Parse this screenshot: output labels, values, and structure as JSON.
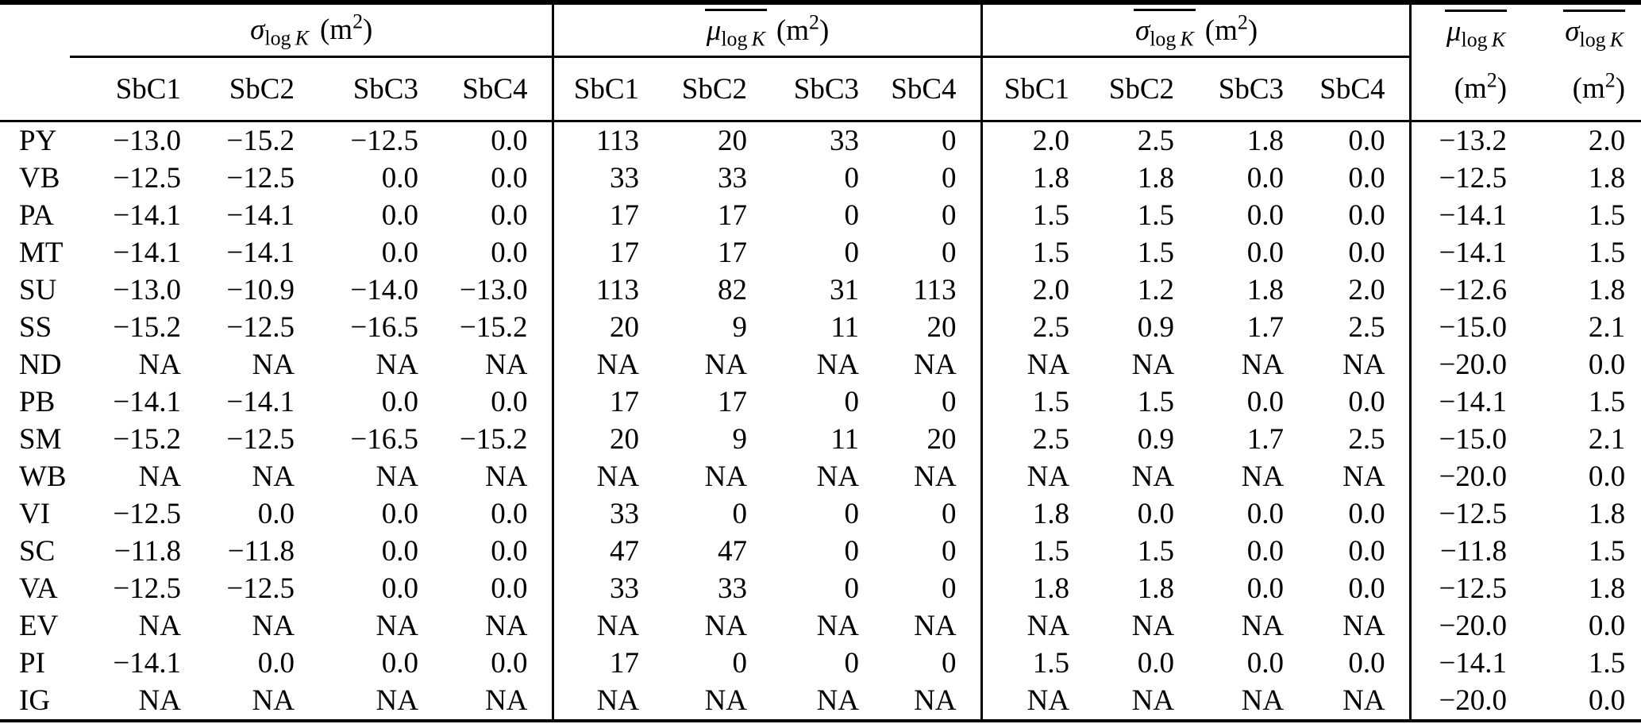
{
  "table": {
    "groups": [
      {
        "symbol": "σ",
        "sub_roman": "log",
        "sub_italic": "K",
        "overline": false,
        "unit_open": "(m",
        "unit_exp": "2",
        "unit_close": ")",
        "subcols": [
          "SbC1",
          "SbC2",
          "SbC3",
          "SbC4"
        ]
      },
      {
        "symbol": "μ",
        "sub_roman": "log",
        "sub_italic": "K",
        "overline": true,
        "unit_open": "(m",
        "unit_exp": "2",
        "unit_close": ")",
        "subcols": [
          "SbC1",
          "SbC2",
          "SbC3",
          "SbC4"
        ]
      },
      {
        "symbol": "σ",
        "sub_roman": "log",
        "sub_italic": "K",
        "overline": true,
        "unit_open": "(m",
        "unit_exp": "2",
        "unit_close": ")",
        "subcols": [
          "SbC1",
          "SbC2",
          "SbC3",
          "SbC4"
        ]
      }
    ],
    "summary_cols": [
      {
        "symbol": "μ",
        "sub_roman": "log",
        "sub_italic": "K",
        "overline": true,
        "unit_open": "(m",
        "unit_exp": "2",
        "unit_close": ")"
      },
      {
        "symbol": "σ",
        "sub_roman": "log",
        "sub_italic": "K",
        "overline": true,
        "unit_open": "(m",
        "unit_exp": "2",
        "unit_close": ")"
      }
    ],
    "rows": [
      {
        "label": "PY",
        "values": [
          "−13.0",
          "−15.2",
          "−12.5",
          "0.0",
          "113",
          "20",
          "33",
          "0",
          "2.0",
          "2.5",
          "1.8",
          "0.0",
          "−13.2",
          "2.0"
        ]
      },
      {
        "label": "VB",
        "values": [
          "−12.5",
          "−12.5",
          "0.0",
          "0.0",
          "33",
          "33",
          "0",
          "0",
          "1.8",
          "1.8",
          "0.0",
          "0.0",
          "−12.5",
          "1.8"
        ]
      },
      {
        "label": "PA",
        "values": [
          "−14.1",
          "−14.1",
          "0.0",
          "0.0",
          "17",
          "17",
          "0",
          "0",
          "1.5",
          "1.5",
          "0.0",
          "0.0",
          "−14.1",
          "1.5"
        ]
      },
      {
        "label": "MT",
        "values": [
          "−14.1",
          "−14.1",
          "0.0",
          "0.0",
          "17",
          "17",
          "0",
          "0",
          "1.5",
          "1.5",
          "0.0",
          "0.0",
          "−14.1",
          "1.5"
        ]
      },
      {
        "label": "SU",
        "values": [
          "−13.0",
          "−10.9",
          "−14.0",
          "−13.0",
          "113",
          "82",
          "31",
          "113",
          "2.0",
          "1.2",
          "1.8",
          "2.0",
          "−12.6",
          "1.8"
        ]
      },
      {
        "label": "SS",
        "values": [
          "−15.2",
          "−12.5",
          "−16.5",
          "−15.2",
          "20",
          "9",
          "11",
          "20",
          "2.5",
          "0.9",
          "1.7",
          "2.5",
          "−15.0",
          "2.1"
        ]
      },
      {
        "label": "ND",
        "values": [
          "NA",
          "NA",
          "NA",
          "NA",
          "NA",
          "NA",
          "NA",
          "NA",
          "NA",
          "NA",
          "NA",
          "NA",
          "−20.0",
          "0.0"
        ]
      },
      {
        "label": "PB",
        "values": [
          "−14.1",
          "−14.1",
          "0.0",
          "0.0",
          "17",
          "17",
          "0",
          "0",
          "1.5",
          "1.5",
          "0.0",
          "0.0",
          "−14.1",
          "1.5"
        ]
      },
      {
        "label": "SM",
        "values": [
          "−15.2",
          "−12.5",
          "−16.5",
          "−15.2",
          "20",
          "9",
          "11",
          "20",
          "2.5",
          "0.9",
          "1.7",
          "2.5",
          "−15.0",
          "2.1"
        ]
      },
      {
        "label": "WB",
        "values": [
          "NA",
          "NA",
          "NA",
          "NA",
          "NA",
          "NA",
          "NA",
          "NA",
          "NA",
          "NA",
          "NA",
          "NA",
          "−20.0",
          "0.0"
        ]
      },
      {
        "label": "VI",
        "values": [
          "−12.5",
          "0.0",
          "0.0",
          "0.0",
          "33",
          "0",
          "0",
          "0",
          "1.8",
          "0.0",
          "0.0",
          "0.0",
          "−12.5",
          "1.8"
        ]
      },
      {
        "label": "SC",
        "values": [
          "−11.8",
          "−11.8",
          "0.0",
          "0.0",
          "47",
          "47",
          "0",
          "0",
          "1.5",
          "1.5",
          "0.0",
          "0.0",
          "−11.8",
          "1.5"
        ]
      },
      {
        "label": "VA",
        "values": [
          "−12.5",
          "−12.5",
          "0.0",
          "0.0",
          "33",
          "33",
          "0",
          "0",
          "1.8",
          "1.8",
          "0.0",
          "0.0",
          "−12.5",
          "1.8"
        ]
      },
      {
        "label": "EV",
        "values": [
          "NA",
          "NA",
          "NA",
          "NA",
          "NA",
          "NA",
          "NA",
          "NA",
          "NA",
          "NA",
          "NA",
          "NA",
          "−20.0",
          "0.0"
        ]
      },
      {
        "label": "PI",
        "values": [
          "−14.1",
          "0.0",
          "0.0",
          "0.0",
          "17",
          "0",
          "0",
          "0",
          "1.5",
          "0.0",
          "0.0",
          "0.0",
          "−14.1",
          "1.5"
        ]
      },
      {
        "label": "IG",
        "values": [
          "NA",
          "NA",
          "NA",
          "NA",
          "NA",
          "NA",
          "NA",
          "NA",
          "NA",
          "NA",
          "NA",
          "NA",
          "−20.0",
          "0.0"
        ]
      }
    ]
  }
}
